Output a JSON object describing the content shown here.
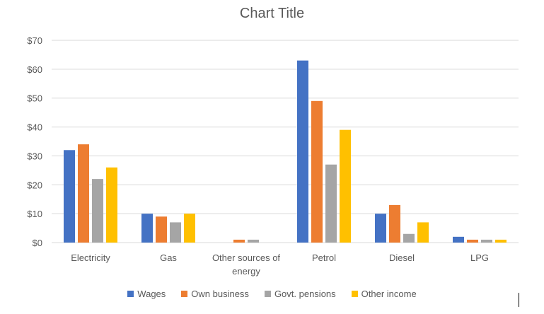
{
  "chart_data": {
    "type": "bar",
    "title": "Chart Title",
    "xlabel": "",
    "ylabel": "",
    "categories": [
      "Electricity",
      "Gas",
      "Other sources of energy",
      "Petrol",
      "Diesel",
      "LPG"
    ],
    "category_lines": [
      [
        "Electricity"
      ],
      [
        "Gas"
      ],
      [
        "Other sources of",
        "energy"
      ],
      [
        "Petrol"
      ],
      [
        "Diesel"
      ],
      [
        "LPG"
      ]
    ],
    "ylim": [
      0,
      70
    ],
    "yticks": [
      0,
      10,
      20,
      30,
      40,
      50,
      60,
      70
    ],
    "ytick_labels": [
      "$0",
      "$10",
      "$20",
      "$30",
      "$40",
      "$50",
      "$60",
      "$70"
    ],
    "grid": true,
    "legend_position": "bottom",
    "series": [
      {
        "name": "Wages",
        "color": "#4472C4",
        "values": [
          32,
          10,
          0,
          63,
          10,
          2
        ]
      },
      {
        "name": "Own business",
        "color": "#ED7D31",
        "values": [
          34,
          9,
          1,
          49,
          13,
          1
        ]
      },
      {
        "name": "Govt. pensions",
        "color": "#A5A5A5",
        "values": [
          22,
          7,
          1,
          27,
          3,
          1
        ]
      },
      {
        "name": "Other income",
        "color": "#FFC000",
        "values": [
          26,
          10,
          0,
          39,
          7,
          1
        ]
      }
    ]
  }
}
